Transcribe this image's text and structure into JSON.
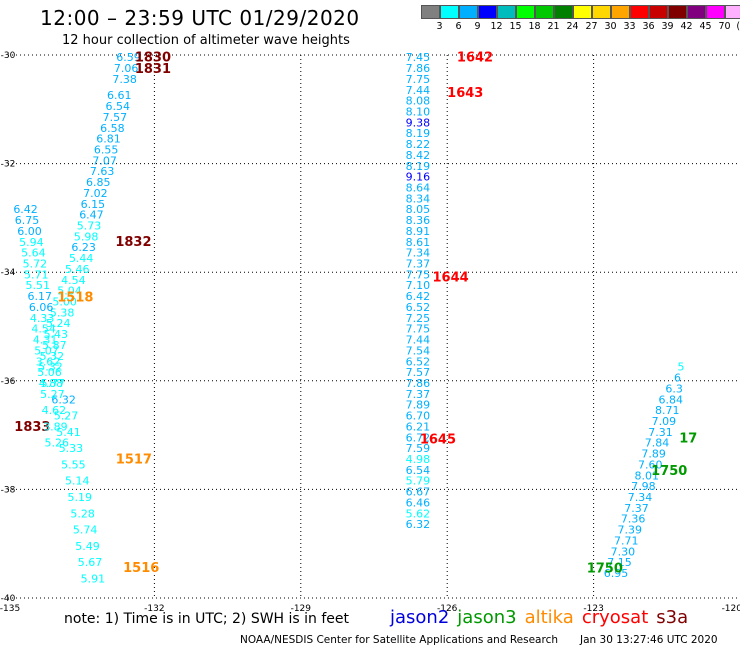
{
  "header": {
    "title": "12:00 – 23:59 UTC 01/29/2020",
    "subtitle": "12 hour collection of altimeter wave heights"
  },
  "legend": {
    "colors": [
      "#808080",
      "#00ffff",
      "#00b0ff",
      "#0000ff",
      "#00bcbc",
      "#00ff00",
      "#00c800",
      "#008000",
      "#ffff00",
      "#ffd700",
      "#ffa500",
      "#ff0000",
      "#c80000",
      "#800000",
      "#800080",
      "#ff00ff",
      "#ffb0ff",
      "#000000"
    ],
    "labels": [
      "3",
      "6",
      "9",
      "12",
      "15",
      "18",
      "21",
      "24",
      "27",
      "30",
      "33",
      "36",
      "39",
      "42",
      "45",
      "70",
      "(ft)"
    ]
  },
  "footer": {
    "note": "note:  1) Time is in UTC;  2) SWH is in feet",
    "satellites": [
      {
        "name": "jason2",
        "color": "#0000dd"
      },
      {
        "name": "jason3",
        "color": "#009900"
      },
      {
        "name": "altika",
        "color": "#ff8c00"
      },
      {
        "name": "cryosat",
        "color": "#ff0000"
      },
      {
        "name": "s3a",
        "color": "#800000"
      }
    ],
    "credit": "NOAA/NESDIS Center for Satellite Applications and Research",
    "timestamp": "Jan 30 13:27:46 UTC 2020"
  },
  "chart_data": {
    "type": "scatter",
    "title": "12:00 – 23:59 UTC 01/29/2020",
    "subtitle": "12 hour collection of altimeter wave heights",
    "xlim": [
      -135,
      -120
    ],
    "ylim": [
      -40,
      -30
    ],
    "x_ticks": [
      "-135",
      "-132",
      "-129",
      "-126",
      "-123",
      "-120"
    ],
    "y_ticks": [
      "-30",
      "-32",
      "-34",
      "-36",
      "-38",
      "-40"
    ],
    "grid": true,
    "tracks": [
      {
        "name": "s3a",
        "color": "#800000",
        "points": [
          {
            "x": -132.53,
            "y": -30.04,
            "v": "6.59"
          },
          {
            "x": -132.58,
            "y": -30.24,
            "v": "7.06"
          },
          {
            "x": -132.61,
            "y": -30.44,
            "v": "7.38"
          },
          {
            "x": -132.72,
            "y": -30.74,
            "v": "6.61"
          },
          {
            "x": -132.75,
            "y": -30.94,
            "v": "6.54"
          },
          {
            "x": -132.81,
            "y": -31.14,
            "v": "7.57"
          },
          {
            "x": -132.86,
            "y": -31.34,
            "v": "6.58"
          },
          {
            "x": -132.94,
            "y": -31.54,
            "v": "6.81"
          },
          {
            "x": -132.99,
            "y": -31.74,
            "v": "6.55"
          },
          {
            "x": -133.02,
            "y": -31.94,
            "v": "7.07"
          },
          {
            "x": -133.07,
            "y": -32.14,
            "v": "7.63"
          },
          {
            "x": -133.15,
            "y": -32.34,
            "v": "6.85"
          },
          {
            "x": -133.21,
            "y": -32.54,
            "v": "7.02"
          },
          {
            "x": -133.26,
            "y": -32.74,
            "v": "6.15"
          },
          {
            "x": -133.29,
            "y": -32.94,
            "v": "6.47"
          },
          {
            "x": -133.34,
            "y": -33.14,
            "v": "5.73"
          },
          {
            "x": -133.4,
            "y": -33.34,
            "v": "5.98"
          },
          {
            "x": -133.45,
            "y": -33.54,
            "v": "6.23"
          },
          {
            "x": -133.5,
            "y": -33.74,
            "v": "5.44"
          },
          {
            "x": -133.58,
            "y": -33.94,
            "v": "5.46"
          },
          {
            "x": -133.66,
            "y": -34.14,
            "v": "4.54"
          },
          {
            "x": -133.74,
            "y": -34.34,
            "v": "5.04"
          },
          {
            "x": -133.84,
            "y": -34.54,
            "v": "5.00"
          },
          {
            "x": -133.89,
            "y": -34.74,
            "v": "5.38"
          },
          {
            "x": -133.97,
            "y": -34.94,
            "v": "5.24"
          },
          {
            "x": -134.02,
            "y": -35.14,
            "v": "5.43"
          },
          {
            "x": -134.05,
            "y": -35.34,
            "v": "5.87"
          },
          {
            "x": -134.1,
            "y": -35.54,
            "v": "5.32"
          },
          {
            "x": -134.13,
            "y": -35.74,
            "v": "5.32"
          },
          {
            "x": -134.08,
            "y": -36.04,
            "v": "5.77"
          },
          {
            "x": -133.86,
            "y": -36.34,
            "v": "6.32"
          },
          {
            "x": -133.81,
            "y": -36.64,
            "v": "5.27"
          },
          {
            "x": -133.76,
            "y": -36.94,
            "v": "5.41"
          },
          {
            "x": -133.71,
            "y": -37.24,
            "v": "5.33"
          },
          {
            "x": -133.66,
            "y": -37.54,
            "v": "5.55"
          },
          {
            "x": -133.58,
            "y": -37.84,
            "v": "5.14"
          },
          {
            "x": -133.53,
            "y": -38.14,
            "v": "5.19"
          },
          {
            "x": -133.47,
            "y": -38.44,
            "v": "5.28"
          },
          {
            "x": -133.42,
            "y": -38.74,
            "v": "5.74"
          },
          {
            "x": -133.37,
            "y": -39.04,
            "v": "5.49"
          },
          {
            "x": -133.32,
            "y": -39.34,
            "v": "5.67"
          },
          {
            "x": -133.26,
            "y": -39.64,
            "v": "5.91"
          }
        ],
        "times": [
          {
            "x": -132.03,
            "y": -30.03,
            "t": "1830"
          },
          {
            "x": -132.03,
            "y": -30.24,
            "t": "1831"
          },
          {
            "x": -132.43,
            "y": -33.43,
            "t": "1832"
          },
          {
            "x": -134.5,
            "y": -36.83,
            "t": "1833"
          }
        ]
      },
      {
        "name": "altika",
        "color": "#ff8c00",
        "points": [
          {
            "x": -134.64,
            "y": -32.84,
            "v": "6.42"
          },
          {
            "x": -134.61,
            "y": -33.04,
            "v": "6.75"
          },
          {
            "x": -134.56,
            "y": -33.24,
            "v": "6.00"
          },
          {
            "x": -134.52,
            "y": -33.44,
            "v": "5.94"
          },
          {
            "x": -134.48,
            "y": -33.64,
            "v": "5.64"
          },
          {
            "x": -134.45,
            "y": -33.84,
            "v": "5.72"
          },
          {
            "x": -134.42,
            "y": -34.04,
            "v": "5.71"
          },
          {
            "x": -134.39,
            "y": -34.24,
            "v": "5.51"
          },
          {
            "x": -134.35,
            "y": -34.44,
            "v": "6.17"
          },
          {
            "x": -134.32,
            "y": -34.64,
            "v": "6.06"
          },
          {
            "x": -134.3,
            "y": -34.84,
            "v": "4.33"
          },
          {
            "x": -134.27,
            "y": -35.04,
            "v": "4.54"
          },
          {
            "x": -134.24,
            "y": -35.24,
            "v": "4.31"
          },
          {
            "x": -134.21,
            "y": -35.44,
            "v": "5.07"
          },
          {
            "x": -134.18,
            "y": -35.64,
            "v": "3.62"
          },
          {
            "x": -134.15,
            "y": -35.84,
            "v": "5.06"
          },
          {
            "x": -134.12,
            "y": -36.04,
            "v": "4.88"
          },
          {
            "x": -134.09,
            "y": -36.24,
            "v": "5.27"
          },
          {
            "x": -134.06,
            "y": -36.54,
            "v": "4.62"
          },
          {
            "x": -134.03,
            "y": -36.84,
            "v": "3.89"
          },
          {
            "x": -134.0,
            "y": -37.14,
            "v": "5.26"
          }
        ],
        "times": [
          {
            "x": -133.62,
            "y": -34.45,
            "t": "1518"
          },
          {
            "x": -132.42,
            "y": -37.43,
            "t": "1517"
          },
          {
            "x": -132.27,
            "y": -39.43,
            "t": "1516"
          }
        ]
      },
      {
        "name": "jason2",
        "color": "#0000dd",
        "points": [
          {
            "x": -126.6,
            "y": -30.04,
            "v": "7.45"
          },
          {
            "x": -126.6,
            "y": -30.24,
            "v": "7.86"
          },
          {
            "x": -126.6,
            "y": -30.44,
            "v": "7.75"
          },
          {
            "x": -126.6,
            "y": -30.64,
            "v": "7.44"
          },
          {
            "x": -126.6,
            "y": -30.84,
            "v": "8.08"
          },
          {
            "x": -126.6,
            "y": -31.04,
            "v": "8.10"
          },
          {
            "x": -126.6,
            "y": -31.24,
            "v": "9.38"
          },
          {
            "x": -126.6,
            "y": -31.44,
            "v": "8.19"
          },
          {
            "x": -126.6,
            "y": -31.64,
            "v": "8.22"
          },
          {
            "x": -126.6,
            "y": -31.84,
            "v": "8.42"
          },
          {
            "x": -126.6,
            "y": -32.04,
            "v": "8.19"
          },
          {
            "x": -126.6,
            "y": -32.24,
            "v": "9.16"
          },
          {
            "x": -126.6,
            "y": -32.44,
            "v": "8.64"
          },
          {
            "x": -126.6,
            "y": -32.64,
            "v": "8.34"
          },
          {
            "x": -126.6,
            "y": -32.84,
            "v": "8.05"
          },
          {
            "x": -126.6,
            "y": -33.04,
            "v": "8.36"
          },
          {
            "x": -126.6,
            "y": -33.24,
            "v": "8.91"
          },
          {
            "x": -126.6,
            "y": -33.44,
            "v": "8.61"
          },
          {
            "x": -126.6,
            "y": -33.64,
            "v": "7.34"
          },
          {
            "x": -126.6,
            "y": -33.84,
            "v": "7.37"
          },
          {
            "x": -126.6,
            "y": -34.04,
            "v": "7.75"
          },
          {
            "x": -126.6,
            "y": -34.24,
            "v": "7.10"
          },
          {
            "x": -126.6,
            "y": -34.44,
            "v": "6.42"
          },
          {
            "x": -126.6,
            "y": -34.64,
            "v": "6.52"
          },
          {
            "x": -126.6,
            "y": -34.84,
            "v": "7.25"
          },
          {
            "x": -126.6,
            "y": -35.04,
            "v": "7.75"
          },
          {
            "x": -126.6,
            "y": -35.24,
            "v": "7.44"
          },
          {
            "x": -126.6,
            "y": -35.44,
            "v": "7.54"
          },
          {
            "x": -126.6,
            "y": -35.64,
            "v": "6.52"
          },
          {
            "x": -126.6,
            "y": -35.84,
            "v": "7.57"
          },
          {
            "x": -126.6,
            "y": -36.04,
            "v": "7.86"
          },
          {
            "x": -126.6,
            "y": -36.24,
            "v": "7.37"
          },
          {
            "x": -126.6,
            "y": -36.44,
            "v": "7.89"
          },
          {
            "x": -126.6,
            "y": -36.64,
            "v": "6.70"
          },
          {
            "x": -126.6,
            "y": -36.84,
            "v": "6.21"
          },
          {
            "x": -126.6,
            "y": -37.04,
            "v": "6.72"
          },
          {
            "x": -126.6,
            "y": -37.24,
            "v": "7.59"
          },
          {
            "x": -126.6,
            "y": -37.44,
            "v": "4.98"
          },
          {
            "x": -126.6,
            "y": -37.64,
            "v": "6.54"
          },
          {
            "x": -126.6,
            "y": -37.84,
            "v": "5.79"
          },
          {
            "x": -126.6,
            "y": -38.04,
            "v": "6.67"
          },
          {
            "x": -126.6,
            "y": -38.24,
            "v": "6.46"
          },
          {
            "x": -126.6,
            "y": -38.44,
            "v": "5.62"
          },
          {
            "x": -126.6,
            "y": -38.64,
            "v": "6.32"
          }
        ],
        "times": []
      },
      {
        "name": "cryosat",
        "color": "#ff0000",
        "points": [],
        "times": [
          {
            "x": -125.43,
            "y": -30.03,
            "t": "1642"
          },
          {
            "x": -125.63,
            "y": -30.68,
            "t": "1643"
          },
          {
            "x": -125.93,
            "y": -34.08,
            "t": "1644"
          },
          {
            "x": -126.19,
            "y": -37.06,
            "t": "1645"
          }
        ]
      },
      {
        "name": "jason3",
        "color": "#009900",
        "points": [
          {
            "x": -122.54,
            "y": -39.54,
            "v": "6.95"
          },
          {
            "x": -122.47,
            "y": -39.34,
            "v": "7.15"
          },
          {
            "x": -122.4,
            "y": -39.14,
            "v": "7.30"
          },
          {
            "x": -122.33,
            "y": -38.94,
            "v": "7.71"
          },
          {
            "x": -122.26,
            "y": -38.74,
            "v": "7.39"
          },
          {
            "x": -122.19,
            "y": -38.54,
            "v": "7.36"
          },
          {
            "x": -122.12,
            "y": -38.34,
            "v": "7.37"
          },
          {
            "x": -122.05,
            "y": -38.14,
            "v": "7.34"
          },
          {
            "x": -121.98,
            "y": -37.94,
            "v": "7.98"
          },
          {
            "x": -121.91,
            "y": -37.74,
            "v": "8.01"
          },
          {
            "x": -121.84,
            "y": -37.54,
            "v": "7.60"
          },
          {
            "x": -121.77,
            "y": -37.34,
            "v": "7.89"
          },
          {
            "x": -121.7,
            "y": -37.14,
            "v": "7.84"
          },
          {
            "x": -121.63,
            "y": -36.94,
            "v": "7.31"
          },
          {
            "x": -121.56,
            "y": -36.74,
            "v": "7.09"
          },
          {
            "x": -121.49,
            "y": -36.54,
            "v": "8.71"
          },
          {
            "x": -121.42,
            "y": -36.34,
            "v": "6.84"
          },
          {
            "x": -121.35,
            "y": -36.14,
            "v": "6.3"
          },
          {
            "x": -121.28,
            "y": -35.94,
            "v": "6"
          },
          {
            "x": -121.21,
            "y": -35.74,
            "v": "5"
          }
        ],
        "times": [
          {
            "x": -122.77,
            "y": -39.44,
            "t": "1750"
          },
          {
            "x": -121.45,
            "y": -37.64,
            "t": "1750"
          },
          {
            "x": -121.06,
            "y": -37.04,
            "t": "17"
          }
        ]
      }
    ]
  }
}
